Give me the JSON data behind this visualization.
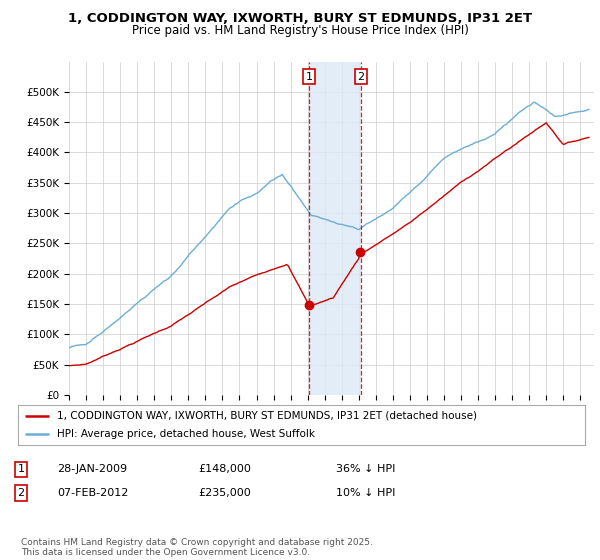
{
  "title": "1, CODDINGTON WAY, IXWORTH, BURY ST EDMUNDS, IP31 2ET",
  "subtitle": "Price paid vs. HM Land Registry's House Price Index (HPI)",
  "legend_line1": "1, CODDINGTON WAY, IXWORTH, BURY ST EDMUNDS, IP31 2ET (detached house)",
  "legend_line2": "HPI: Average price, detached house, West Suffolk",
  "annotation1_date": "28-JAN-2009",
  "annotation1_price": "£148,000",
  "annotation1_hpi": "36% ↓ HPI",
  "annotation1_year": 2009.08,
  "annotation1_value": 148000,
  "annotation2_date": "07-FEB-2012",
  "annotation2_price": "£235,000",
  "annotation2_hpi": "10% ↓ HPI",
  "annotation2_year": 2012.12,
  "annotation2_value": 235000,
  "hpi_color": "#6baed6",
  "price_color": "#cc0000",
  "annotation_fill": "#dce9f5",
  "annotation_line_color": "#cc0000",
  "ylim": [
    0,
    550000
  ],
  "yticks": [
    0,
    50000,
    100000,
    150000,
    200000,
    250000,
    300000,
    350000,
    400000,
    450000,
    500000
  ],
  "footer": "Contains HM Land Registry data © Crown copyright and database right 2025.\nThis data is licensed under the Open Government Licence v3.0.",
  "background_color": "#ffffff"
}
